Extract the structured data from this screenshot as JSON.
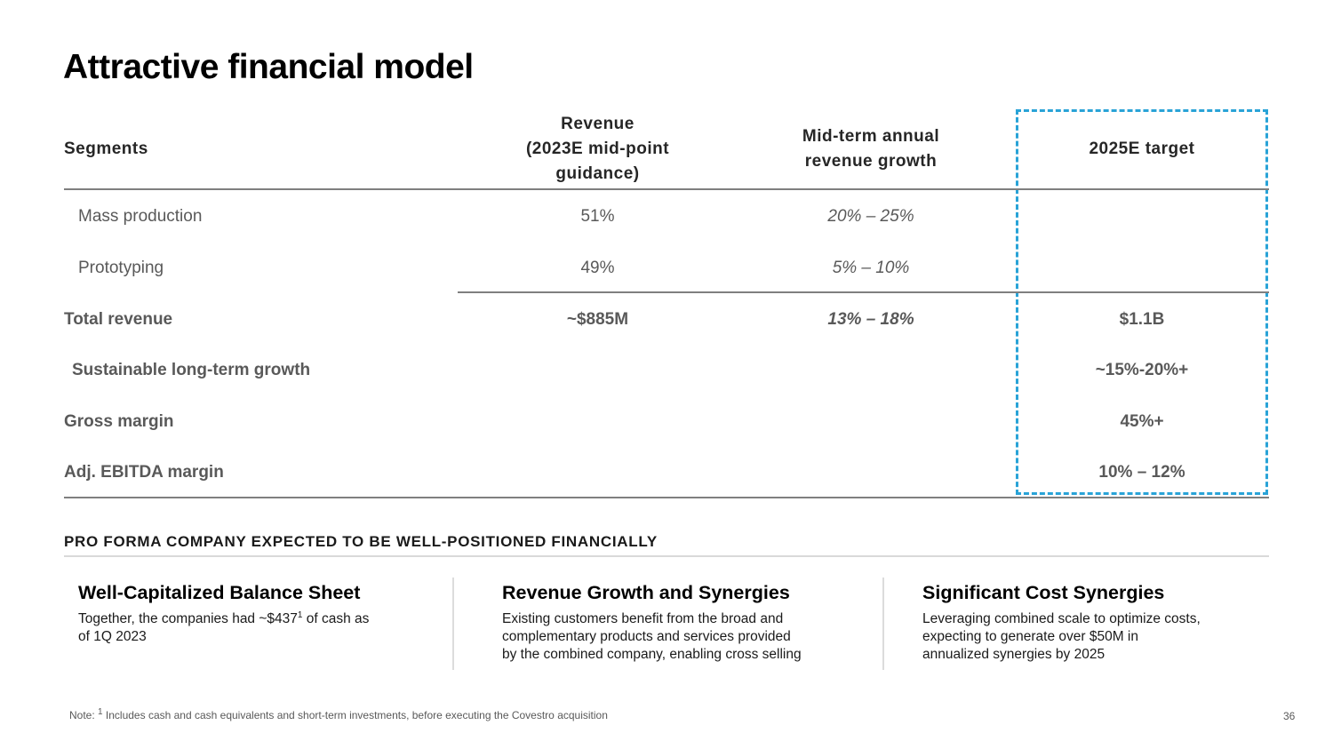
{
  "slide": {
    "title": "Attractive financial model",
    "page_number": "36"
  },
  "table": {
    "header": {
      "segments": "Segments",
      "revenue": "Revenue\n(2023E mid-point\nguidance)",
      "growth": "Mid-term annual\nrevenue growth",
      "target": "2025E target"
    },
    "rows": [
      {
        "label": "Mass production",
        "revenue": "51%",
        "growth": "20% – 25%"
      },
      {
        "label": "Prototyping",
        "revenue": "49%",
        "growth": "5% – 10%"
      },
      {
        "label": "Total revenue",
        "revenue": "~$885M",
        "growth": "13% – 18%",
        "target": "$1.1B"
      },
      {
        "label": "Sustainable long-term growth",
        "target": "~15%-20%+"
      },
      {
        "label": "Gross margin",
        "target": "45%+"
      },
      {
        "label": "Adj. EBITDA margin",
        "target": "10% – 12%"
      }
    ]
  },
  "section": {
    "heading": "PRO FORMA COMPANY EXPECTED TO BE WELL-POSITIONED FINANCIALLY"
  },
  "cards": [
    {
      "title": "Well-Capitalized Balance Sheet",
      "body_pre": "Together, the companies had ~$437",
      "body_sup": "1",
      "body_post": " of cash as\nof 1Q 2023"
    },
    {
      "title": "Revenue Growth and Synergies",
      "body": "Existing customers benefit from the broad and\ncomplementary products and services provided\nby the combined company, enabling cross selling"
    },
    {
      "title": "Significant Cost Synergies",
      "body": "Leveraging combined scale to optimize costs,\nexpecting to generate over $50M in\nannualized synergies by 2025"
    }
  ],
  "footnote": {
    "pre": "Note: ",
    "sup": "1",
    "post": " Includes cash and cash equivalents and short-term investments, before executing the Covestro acquisition"
  },
  "colors": {
    "accent_dashed_border": "#29A3D7",
    "table_rule": "#7F7F7F",
    "light_rule": "#D9D9D9",
    "text_dark": "#1A1A1A",
    "text_gray": "#595959"
  }
}
